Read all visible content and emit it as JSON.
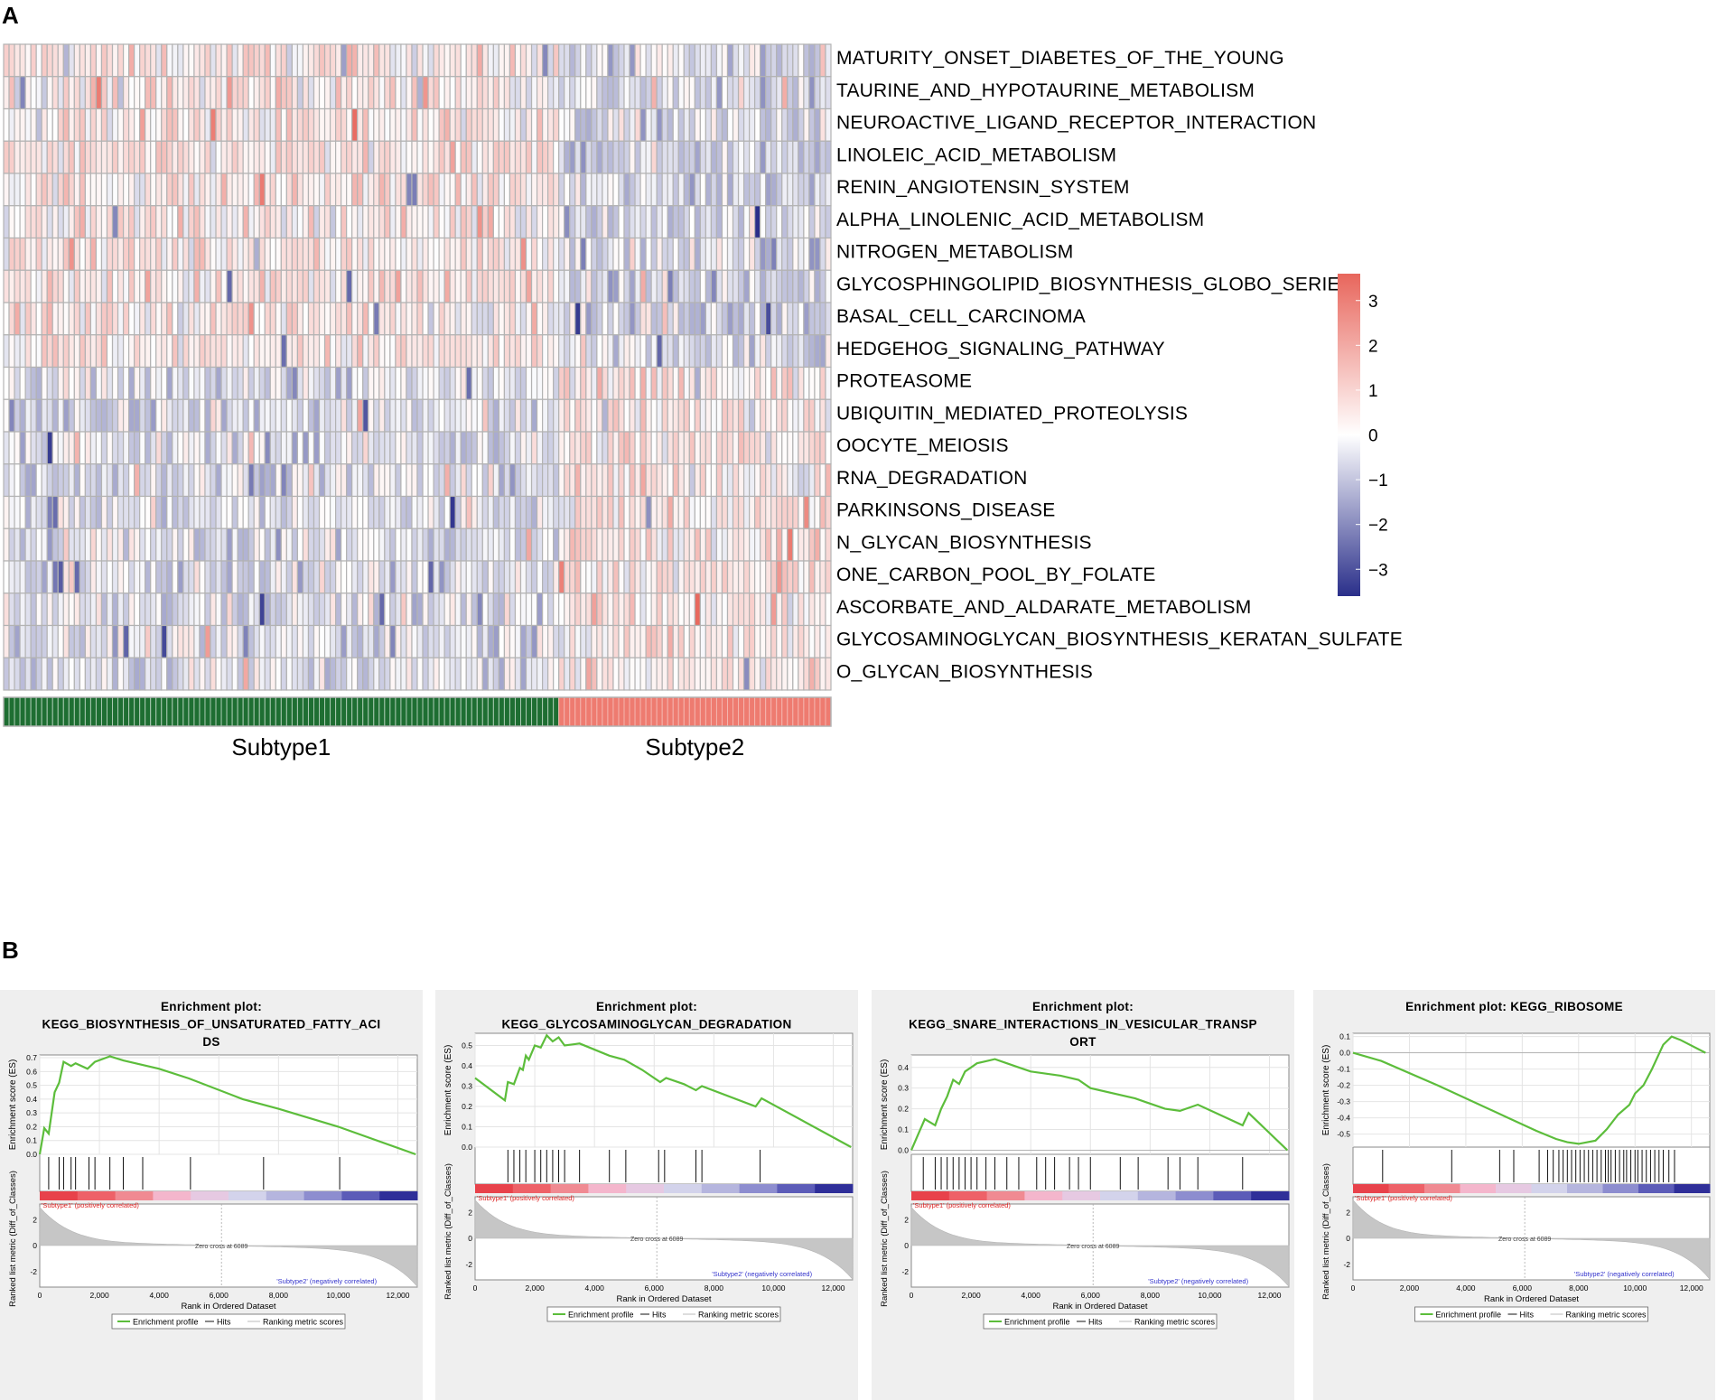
{
  "figure": {
    "panel_a_label": "A",
    "panel_b_label": "B"
  },
  "colors": {
    "high": "#e8665c",
    "mid": "#ffffff",
    "low": "#2a2f8a",
    "subtype1": "#1e6e32",
    "subtype2": "#ee7b70",
    "es_line": "#5cbd3b",
    "grid_border": "#b3b3b3"
  },
  "chart_data": [
    {
      "type": "heatmap",
      "title": "",
      "rows": [
        "MATURITY_ONSET_DIABETES_OF_THE_YOUNG",
        "TAURINE_AND_HYPOTAURINE_METABOLISM",
        "NEUROACTIVE_LIGAND_RECEPTOR_INTERACTION",
        "LINOLEIC_ACID_METABOLISM",
        "RENIN_ANGIOTENSIN_SYSTEM",
        "ALPHA_LINOLENIC_ACID_METABOLISM",
        "NITROGEN_METABOLISM",
        "GLYCOSPHINGOLIPID_BIOSYNTHESIS_GLOBO_SERIES",
        "BASAL_CELL_CARCINOMA",
        "HEDGEHOG_SIGNALING_PATHWAY",
        "PROTEASOME",
        "UBIQUITIN_MEDIATED_PROTEOLYSIS",
        "OOCYTE_MEIOSIS",
        "RNA_DEGRADATION",
        "PARKINSONS_DISEASE",
        "N_GLYCAN_BIOSYNTHESIS",
        "ONE_CARBON_POOL_BY_FOLATE",
        "ASCORBATE_AND_ALDARATE_METABOLISM",
        "GLYCOSAMINOGLYCAN_BIOSYNTHESIS_KERATAN_SULFATE",
        "O_GLYCAN_BIOSYNTHESIS"
      ],
      "group_labels": [
        "Subtype1",
        "Subtype2"
      ],
      "n_samples_subtype1": 102,
      "n_samples_subtype2": 50,
      "row_pattern": [
        "up",
        "up",
        "up",
        "up",
        "up",
        "up",
        "up",
        "up",
        "up",
        "up",
        "down",
        "down",
        "down",
        "down",
        "down",
        "down",
        "down",
        "down",
        "down",
        "down"
      ],
      "legend_ticks": [
        "3",
        "2",
        "1",
        "0",
        "−1",
        "−2",
        "−3"
      ],
      "legend_range": [
        -3.6,
        3.6
      ]
    },
    {
      "type": "line",
      "plot_title_line1": "Enrichment plot:",
      "plot_title_rest": [
        "KEGG_BIOSYNTHESIS_OF_UNSATURATED_FATTY_ACI",
        "DS"
      ],
      "ylabel": "Enrichment score (ES)",
      "ylim": [
        0,
        0.72
      ],
      "yticks": [
        "0.0",
        "0.1",
        "0.2",
        "0.3",
        "0.4",
        "0.5",
        "0.6",
        "0.7"
      ],
      "ytick_values": [
        0,
        0.1,
        0.2,
        0.3,
        0.4,
        0.5,
        0.6,
        0.7
      ],
      "x": [
        0,
        150,
        300,
        500,
        650,
        800,
        1050,
        1200,
        1600,
        1850,
        2350,
        2800,
        4000,
        5000,
        6800,
        8000,
        10000,
        12600
      ],
      "es": [
        0,
        0.19,
        0.15,
        0.45,
        0.52,
        0.67,
        0.64,
        0.66,
        0.62,
        0.67,
        0.71,
        0.68,
        0.62,
        0.55,
        0.4,
        0.33,
        0.2,
        0
      ],
      "hits": [
        300,
        650,
        800,
        1050,
        1200,
        1650,
        1850,
        2350,
        2800,
        3450,
        5050,
        7500,
        10050
      ],
      "rank_ylabel": "Ranked list metric (Diff_of_Classes)",
      "rank_yticks": [
        "2",
        "0",
        "-2"
      ],
      "rank_ytick_values": [
        2,
        0,
        -2
      ],
      "xlabel": "Rank in Ordered Dataset",
      "xticks": [
        "0",
        "2,000",
        "4,000",
        "6,000",
        "8,000",
        "10,000",
        "12,000"
      ],
      "xtick_values": [
        0,
        2000,
        4000,
        6000,
        8000,
        10000,
        12000
      ],
      "x_max": 12650,
      "zero_cross": "Zero cross at 6089",
      "zero_cross_value": 6089,
      "pos_label": "'Subtype1' (positively correlated)",
      "neg_label": "'Subtype2' (negatively correlated)",
      "legend": [
        "Enrichment profile",
        "Hits",
        "Ranking metric scores"
      ]
    },
    {
      "type": "line",
      "plot_title_line1": "Enrichment plot:",
      "plot_title_rest": [
        "KEGG_GLYCOSAMINOGLYCAN_DEGRADATION"
      ],
      "ylabel": "Enrichment score (ES)",
      "ylim": [
        0,
        0.56
      ],
      "yticks": [
        "0.0",
        "0.1",
        "0.2",
        "0.3",
        "0.4",
        "0.5"
      ],
      "ytick_values": [
        0,
        0.1,
        0.2,
        0.3,
        0.4,
        0.5
      ],
      "x": [
        0,
        1000,
        1100,
        1300,
        1500,
        1600,
        1700,
        1800,
        2000,
        2200,
        2400,
        2600,
        2800,
        3000,
        3500,
        4500,
        5000,
        5600,
        6200,
        6400,
        7000,
        7400,
        7600,
        9400,
        9600,
        12600
      ],
      "es": [
        0.34,
        0.23,
        0.32,
        0.31,
        0.39,
        0.38,
        0.45,
        0.43,
        0.5,
        0.49,
        0.55,
        0.52,
        0.54,
        0.5,
        0.51,
        0.45,
        0.43,
        0.38,
        0.32,
        0.34,
        0.31,
        0.28,
        0.3,
        0.2,
        0.24,
        0
      ],
      "hits": [
        1100,
        1300,
        1500,
        1700,
        2000,
        2200,
        2400,
        2600,
        2800,
        3000,
        3500,
        4500,
        5050,
        6150,
        6350,
        7400,
        7600,
        9550
      ],
      "rank_ylabel": "Ranked list metric (Diff_of_Classes)",
      "rank_yticks": [
        "2",
        "0",
        "-2"
      ],
      "rank_ytick_values": [
        2,
        0,
        -2
      ],
      "xlabel": "Rank in Ordered Dataset",
      "xticks": [
        "0",
        "2,000",
        "4,000",
        "6,000",
        "8,000",
        "10,000",
        "12,000"
      ],
      "xtick_values": [
        0,
        2000,
        4000,
        6000,
        8000,
        10000,
        12000
      ],
      "x_max": 12650,
      "zero_cross": "Zero cross at 6089",
      "zero_cross_value": 6089,
      "pos_label": "'Subtype1' (positively correlated)",
      "neg_label": "'Subtype2' (negatively correlated)",
      "legend": [
        "Enrichment profile",
        "Hits",
        "Ranking metric scores"
      ]
    },
    {
      "type": "line",
      "plot_title_line1": "Enrichment plot:",
      "plot_title_rest": [
        "KEGG_SNARE_INTERACTIONS_IN_VESICULAR_TRANSP",
        "ORT"
      ],
      "ylabel": "Enrichment score (ES)",
      "ylim": [
        -0.02,
        0.46
      ],
      "yticks": [
        "0.0",
        "0.1",
        "0.2",
        "0.3",
        "0.4"
      ],
      "ytick_values": [
        0,
        0.1,
        0.2,
        0.3,
        0.4
      ],
      "x": [
        0,
        300,
        450,
        800,
        1000,
        1200,
        1400,
        1600,
        1800,
        2000,
        2200,
        2500,
        2800,
        3200,
        3600,
        4000,
        5000,
        5600,
        6000,
        7500,
        8500,
        9000,
        9600,
        10500,
        11100,
        11300,
        12600
      ],
      "es": [
        0,
        0.1,
        0.15,
        0.12,
        0.2,
        0.26,
        0.34,
        0.32,
        0.38,
        0.4,
        0.42,
        0.43,
        0.44,
        0.42,
        0.4,
        0.38,
        0.36,
        0.34,
        0.3,
        0.25,
        0.2,
        0.19,
        0.22,
        0.16,
        0.12,
        0.18,
        0
      ],
      "hits": [
        400,
        800,
        1000,
        1200,
        1400,
        1600,
        1800,
        2000,
        2200,
        2500,
        2800,
        3200,
        3600,
        4200,
        4500,
        4800,
        5300,
        5600,
        6000,
        7000,
        7600,
        8600,
        9000,
        9600,
        11100
      ],
      "rank_ylabel": "Ranked list metric (Diff_of_Classes)",
      "rank_yticks": [
        "2",
        "0",
        "-2"
      ],
      "rank_ytick_values": [
        2,
        0,
        -2
      ],
      "xlabel": "Rank in Ordered Dataset",
      "xticks": [
        "0",
        "2,000",
        "4,000",
        "6,000",
        "8,000",
        "10,000",
        "12,000"
      ],
      "xtick_values": [
        0,
        2000,
        4000,
        6000,
        8000,
        10000,
        12000
      ],
      "x_max": 12650,
      "zero_cross": "Zero cross at 6089",
      "zero_cross_value": 6089,
      "pos_label": "'Subtype1' (positively correlated)",
      "neg_label": "'Subtype2' (negatively correlated)",
      "legend": [
        "Enrichment profile",
        "Hits",
        "Ranking metric scores"
      ]
    },
    {
      "type": "line",
      "plot_title_line1": "Enrichment plot: KEGG_RIBOSOME",
      "plot_title_rest": [],
      "ylabel": "Enrichment score (ES)",
      "ylim": [
        -0.58,
        0.12
      ],
      "yticks": [
        "0.1",
        "0.0",
        "-0.1",
        "-0.2",
        "-0.3",
        "-0.4",
        "-0.5"
      ],
      "ytick_values": [
        0.1,
        0,
        -0.1,
        -0.2,
        -0.3,
        -0.4,
        -0.5
      ],
      "x": [
        0,
        1000,
        3000,
        5500,
        6500,
        7200,
        7600,
        8000,
        8600,
        9000,
        9400,
        9800,
        10000,
        10300,
        10600,
        11000,
        11300,
        11600,
        12500
      ],
      "es": [
        0,
        -0.05,
        -0.2,
        -0.4,
        -0.48,
        -0.53,
        -0.55,
        -0.56,
        -0.54,
        -0.47,
        -0.38,
        -0.32,
        -0.25,
        -0.2,
        -0.1,
        0.05,
        0.1,
        0.08,
        0
      ],
      "hits": [
        1050,
        3500,
        5200,
        5700,
        6600,
        6900,
        7100,
        7300,
        7450,
        7600,
        7750,
        7900,
        8050,
        8200,
        8350,
        8500,
        8650,
        8800,
        8950,
        9050,
        9150,
        9300,
        9450,
        9600,
        9700,
        9850,
        10000,
        10100,
        10250,
        10400,
        10550,
        10700,
        10850,
        11000,
        11200,
        11400
      ],
      "rank_ylabel": "Ranked list metric (Diff_of_Classes)",
      "rank_yticks": [
        "2",
        "0",
        "-2"
      ],
      "rank_ytick_values": [
        2,
        0,
        -2
      ],
      "xlabel": "Rank in Ordered Dataset",
      "xticks": [
        "0",
        "2,000",
        "4,000",
        "6,000",
        "8,000",
        "10,000",
        "12,000"
      ],
      "xtick_values": [
        0,
        2000,
        4000,
        6000,
        8000,
        10000,
        12000
      ],
      "x_max": 12650,
      "zero_cross": "Zero cross at 6089",
      "zero_cross_value": 6089,
      "pos_label": "'Subtype1' (positively correlated)",
      "neg_label": "'Subtype2' (negatively correlated)",
      "legend": [
        "Enrichment profile",
        "Hits",
        "Ranking metric scores"
      ]
    }
  ]
}
